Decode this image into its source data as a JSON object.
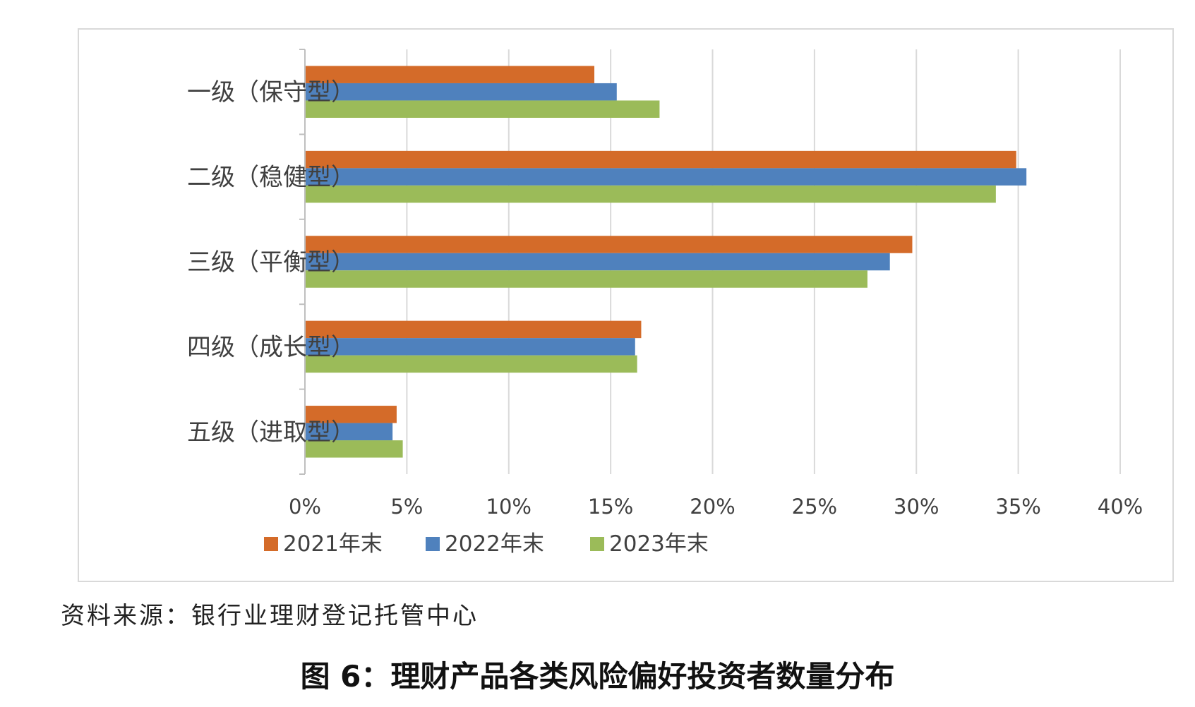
{
  "chart_data": {
    "type": "bar",
    "orientation": "horizontal",
    "categories": [
      "一级（保守型）",
      "二级（稳健型）",
      "三级（平衡型）",
      "四级（成长型）",
      "五级（进取型）"
    ],
    "series": [
      {
        "name": "2021年末",
        "color": "#D46B29",
        "values": [
          14.2,
          34.9,
          29.8,
          16.5,
          4.5
        ]
      },
      {
        "name": "2022年末",
        "color": "#4F81BD",
        "values": [
          15.3,
          35.4,
          28.7,
          16.2,
          4.3
        ]
      },
      {
        "name": "2023年末",
        "color": "#9BBB59",
        "values": [
          17.4,
          33.9,
          27.6,
          16.3,
          4.8
        ]
      }
    ],
    "x_ticks": [
      "0%",
      "5%",
      "10%",
      "15%",
      "20%",
      "25%",
      "30%",
      "35%",
      "40%"
    ],
    "xlim": [
      0,
      40
    ],
    "grid": true,
    "legend_position": "bottom"
  },
  "source_note": "资料来源：银行业理财登记托管中心",
  "figure_caption": "图 6：理财产品各类风险偏好投资者数量分布"
}
